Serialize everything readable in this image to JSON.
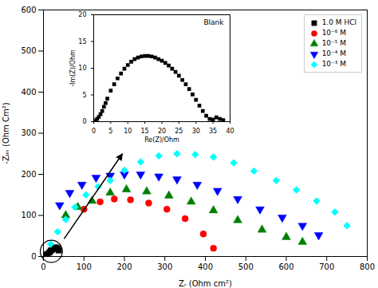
{
  "chart_data": [
    {
      "type": "scatter",
      "xlabel": "Zᵣ (Ohm cm²)",
      "ylabel": "-Zᵢₘ (Ohm Cm²)",
      "xlim": [
        0,
        800
      ],
      "ylim": [
        0,
        600
      ],
      "xticks": [
        0,
        100,
        200,
        300,
        400,
        500,
        600,
        700,
        800
      ],
      "yticks": [
        0,
        100,
        200,
        300,
        400,
        500,
        600
      ],
      "grid": false,
      "legend": "upper right",
      "series": [
        {
          "name": "1.0 M HCl",
          "color": "black",
          "marker": "square",
          "x": [
            3,
            5,
            8,
            10,
            15,
            18,
            22,
            25,
            30,
            35,
            38
          ],
          "values": [
            1,
            2,
            4,
            6,
            10,
            14,
            17,
            20,
            22,
            20,
            15
          ]
        },
        {
          "name": "10⁻⁶ M",
          "color": "red",
          "marker": "circle",
          "x": [
            100,
            140,
            175,
            215,
            260,
            305,
            350,
            395,
            420
          ],
          "values": [
            115,
            133,
            140,
            138,
            130,
            115,
            92,
            55,
            20
          ]
        },
        {
          "name": "10⁻⁵ M",
          "color": "green",
          "marker": "triangle-up",
          "x": [
            55,
            85,
            120,
            165,
            205,
            255,
            310,
            365,
            420,
            480,
            540,
            600,
            640
          ],
          "values": [
            100,
            120,
            135,
            155,
            163,
            158,
            148,
            133,
            112,
            88,
            65,
            47,
            35
          ]
        },
        {
          "name": "10⁻⁴ M",
          "color": "blue",
          "marker": "triangle-down",
          "x": [
            40,
            65,
            95,
            130,
            165,
            200,
            240,
            285,
            330,
            380,
            430,
            480,
            535,
            590,
            640,
            680
          ],
          "values": [
            125,
            155,
            175,
            192,
            197,
            200,
            200,
            195,
            188,
            175,
            160,
            140,
            115,
            95,
            75,
            52
          ]
        },
        {
          "name": "10⁻³ M",
          "color": "cyan",
          "marker": "diamond",
          "x": [
            18,
            35,
            55,
            78,
            105,
            135,
            165,
            200,
            240,
            285,
            330,
            375,
            420,
            470,
            520,
            575,
            625,
            675,
            720,
            750
          ],
          "values": [
            30,
            60,
            90,
            120,
            150,
            170,
            185,
            210,
            230,
            245,
            250,
            248,
            242,
            228,
            208,
            185,
            162,
            135,
            108,
            75
          ]
        }
      ]
    },
    {
      "type": "scatter",
      "xlabel": "Re(Z)/Ohm",
      "ylabel": "-Im(Z)/Ohm",
      "xlim": [
        0,
        40
      ],
      "ylim": [
        0,
        20
      ],
      "xticks": [
        0,
        5,
        10,
        15,
        20,
        25,
        30,
        35,
        40
      ],
      "yticks": [
        0,
        5,
        10,
        15,
        20
      ],
      "grid": false,
      "annotations": [
        "Blank"
      ],
      "series": [
        {
          "color": "black",
          "marker": "square",
          "x": [
            0.5,
            1,
            1.5,
            2,
            2.5,
            3,
            3.5,
            4,
            5,
            6,
            7,
            8,
            9,
            10,
            11,
            12,
            13,
            14,
            15,
            16,
            17,
            18,
            19,
            20,
            21,
            22,
            23,
            24,
            25,
            26,
            27,
            28,
            29,
            30,
            31,
            32,
            33,
            34,
            35,
            36,
            37,
            38
          ],
          "values": [
            0.2,
            0.5,
            0.9,
            1.4,
            2.0,
            2.8,
            3.5,
            4.3,
            5.8,
            7.0,
            8.1,
            9.0,
            9.9,
            10.6,
            11.2,
            11.7,
            12.0,
            12.2,
            12.3,
            12.3,
            12.2,
            12.0,
            11.7,
            11.4,
            11.0,
            10.5,
            9.9,
            9.3,
            8.6,
            7.8,
            7.0,
            6.1,
            5.1,
            4.1,
            3.0,
            2.0,
            1.1,
            0.5,
            0.4,
            0.8,
            0.5,
            0.3
          ]
        }
      ]
    }
  ]
}
